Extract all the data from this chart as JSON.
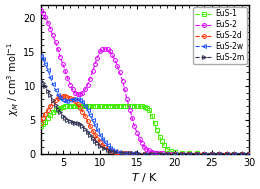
{
  "xlabel": "T / K",
  "xlim": [
    2,
    30
  ],
  "ylim": [
    0,
    22
  ],
  "series": [
    {
      "label": "EuS-1",
      "color": "#44ee00",
      "marker": "s",
      "marker_size": 2.8,
      "linestyle": "--",
      "data_x": [
        2.0,
        2.3,
        2.6,
        3.0,
        3.3,
        3.6,
        4.0,
        4.3,
        4.6,
        5.0,
        5.3,
        5.6,
        6.0,
        6.3,
        6.6,
        7.0,
        7.3,
        7.6,
        8.0,
        8.3,
        8.6,
        9.0,
        9.3,
        9.6,
        10.0,
        10.3,
        10.6,
        11.0,
        11.3,
        11.6,
        12.0,
        12.3,
        12.6,
        13.0,
        13.3,
        13.6,
        14.0,
        14.3,
        14.6,
        15.0,
        15.3,
        15.6,
        16.0,
        16.3,
        16.6,
        17.0,
        17.3,
        17.6,
        18.0,
        18.3,
        18.6,
        19.0,
        19.5,
        20.0,
        21.0,
        22.0,
        23.0,
        24.0,
        25.0,
        26.0,
        27.0,
        28.0,
        29.0,
        30.0
      ],
      "data_y": [
        4.0,
        4.3,
        4.7,
        5.3,
        5.7,
        6.1,
        6.4,
        6.6,
        6.8,
        6.9,
        7.0,
        7.0,
        7.1,
        7.1,
        7.1,
        7.1,
        7.1,
        7.1,
        7.1,
        7.1,
        7.1,
        7.1,
        7.1,
        7.1,
        7.1,
        7.1,
        7.1,
        7.1,
        7.1,
        7.1,
        7.1,
        7.1,
        7.1,
        7.1,
        7.1,
        7.1,
        7.1,
        7.1,
        7.1,
        7.0,
        7.0,
        7.0,
        6.9,
        6.8,
        6.5,
        5.5,
        4.5,
        3.5,
        2.5,
        1.8,
        1.2,
        0.7,
        0.35,
        0.15,
        0.05,
        0.02,
        0.01,
        0.0,
        0.0,
        0.0,
        0.0,
        0.0,
        0.0,
        0.0
      ]
    },
    {
      "label": "EuS-2",
      "color": "#dd00ff",
      "marker": "o",
      "marker_size": 2.8,
      "linestyle": "--",
      "data_x": [
        2.0,
        2.3,
        2.6,
        3.0,
        3.3,
        3.6,
        4.0,
        4.3,
        4.6,
        5.0,
        5.3,
        5.6,
        6.0,
        6.3,
        6.6,
        7.0,
        7.3,
        7.6,
        8.0,
        8.3,
        8.6,
        9.0,
        9.3,
        9.6,
        10.0,
        10.3,
        10.6,
        11.0,
        11.3,
        11.6,
        12.0,
        12.3,
        12.6,
        13.0,
        13.3,
        13.6,
        14.0,
        14.3,
        14.6,
        15.0,
        15.3,
        15.6,
        15.9,
        16.2,
        16.5,
        16.8,
        17.0,
        17.3,
        17.5,
        17.7,
        18.0,
        18.5,
        19.0,
        19.5,
        20.0,
        21.0,
        22.0,
        23.0,
        24.0,
        25.0,
        26.0,
        27.0,
        28.0,
        29.0,
        30.0
      ],
      "data_y": [
        21.2,
        20.8,
        20.2,
        19.3,
        18.5,
        17.5,
        16.5,
        15.5,
        14.3,
        13.2,
        12.2,
        11.2,
        10.2,
        9.5,
        9.0,
        8.8,
        8.8,
        9.0,
        9.5,
        10.2,
        11.0,
        12.2,
        13.2,
        14.2,
        15.1,
        15.4,
        15.5,
        15.4,
        15.1,
        14.6,
        13.8,
        13.0,
        12.0,
        10.8,
        9.5,
        8.0,
        6.5,
        5.2,
        4.0,
        3.0,
        2.2,
        1.5,
        1.0,
        0.7,
        0.45,
        0.28,
        0.18,
        0.1,
        0.07,
        0.04,
        0.02,
        0.01,
        0.0,
        0.0,
        0.0,
        0.0,
        0.0,
        0.0,
        0.0,
        0.0,
        0.0,
        0.0,
        0.0,
        0.0,
        0.0
      ]
    },
    {
      "label": "EuS-2d",
      "color": "#ff3300",
      "marker": "o",
      "marker_size": 2.8,
      "linestyle": "--",
      "data_x": [
        2.0,
        2.3,
        2.6,
        3.0,
        3.3,
        3.6,
        4.0,
        4.3,
        4.6,
        5.0,
        5.3,
        5.6,
        6.0,
        6.3,
        6.6,
        7.0,
        7.3,
        7.6,
        8.0,
        8.3,
        8.6,
        9.0,
        9.3,
        9.6,
        10.0,
        10.3,
        10.6,
        11.0,
        11.3,
        11.6,
        12.0,
        12.3,
        12.6,
        13.0,
        13.3,
        13.5,
        14.0,
        14.5,
        15.0,
        16.0,
        17.0,
        18.0,
        19.0,
        20.0,
        21.0,
        22.0,
        23.0,
        24.0,
        25.0,
        26.0,
        27.0,
        28.0,
        29.0,
        30.0
      ],
      "data_y": [
        4.5,
        5.2,
        5.9,
        6.5,
        7.0,
        7.5,
        7.9,
        8.2,
        8.4,
        8.5,
        8.5,
        8.4,
        8.2,
        8.0,
        7.7,
        7.3,
        6.8,
        6.2,
        5.5,
        4.8,
        4.1,
        3.4,
        2.8,
        2.2,
        1.7,
        1.3,
        1.0,
        0.75,
        0.55,
        0.38,
        0.25,
        0.17,
        0.1,
        0.06,
        0.04,
        0.02,
        0.01,
        0.0,
        0.0,
        0.0,
        0.0,
        0.0,
        0.0,
        0.0,
        0.0,
        0.0,
        0.0,
        0.0,
        0.0,
        0.0,
        0.0,
        0.0,
        0.0,
        0.0
      ]
    },
    {
      "label": "EuS-2w",
      "color": "#2255ff",
      "marker": "<",
      "marker_size": 2.8,
      "linestyle": "--",
      "data_x": [
        2.0,
        2.3,
        2.6,
        3.0,
        3.3,
        3.6,
        4.0,
        4.3,
        4.6,
        5.0,
        5.3,
        5.6,
        6.0,
        6.3,
        6.6,
        7.0,
        7.3,
        7.6,
        8.0,
        8.3,
        8.6,
        9.0,
        9.3,
        9.6,
        10.0,
        10.3,
        10.6,
        11.0,
        11.3,
        11.6,
        12.0,
        12.5,
        13.0,
        13.5,
        14.0,
        14.5,
        15.0,
        16.0,
        17.0,
        18.0,
        19.0,
        20.0,
        21.0,
        22.0,
        23.0,
        24.0,
        25.0,
        26.0,
        27.0,
        28.0,
        29.0,
        30.0
      ],
      "data_y": [
        14.5,
        14.0,
        13.3,
        12.3,
        11.3,
        10.3,
        9.4,
        8.7,
        8.2,
        7.9,
        7.8,
        7.8,
        7.9,
        8.0,
        8.1,
        8.1,
        7.9,
        7.6,
        7.0,
        6.4,
        5.7,
        4.9,
        4.2,
        3.5,
        2.8,
        2.2,
        1.7,
        1.2,
        0.85,
        0.58,
        0.38,
        0.2,
        0.1,
        0.05,
        0.02,
        0.01,
        0.0,
        0.0,
        0.0,
        0.0,
        0.0,
        0.0,
        0.0,
        0.0,
        0.0,
        0.0,
        0.0,
        0.0,
        0.0,
        0.0,
        0.0,
        0.0
      ]
    },
    {
      "label": "EuS-2m",
      "color": "#333355",
      "marker": ">",
      "marker_size": 2.8,
      "linestyle": "--",
      "data_x": [
        2.0,
        2.3,
        2.6,
        3.0,
        3.3,
        3.6,
        4.0,
        4.3,
        4.6,
        5.0,
        5.3,
        5.6,
        6.0,
        6.3,
        6.6,
        7.0,
        7.3,
        7.6,
        8.0,
        8.3,
        8.6,
        9.0,
        9.3,
        9.6,
        10.0,
        10.5,
        11.0,
        11.5,
        12.0,
        13.0,
        14.0,
        15.0,
        16.0,
        17.0,
        18.0,
        19.0,
        20.0,
        21.0,
        22.0,
        23.0,
        24.0,
        25.0,
        26.0,
        27.0,
        28.0,
        29.0,
        30.0
      ],
      "data_y": [
        10.8,
        10.5,
        10.0,
        9.3,
        8.6,
        7.9,
        7.2,
        6.6,
        6.1,
        5.6,
        5.3,
        5.0,
        4.8,
        4.6,
        4.5,
        4.5,
        4.3,
        4.0,
        3.6,
        3.2,
        2.8,
        2.3,
        1.9,
        1.5,
        1.1,
        0.75,
        0.5,
        0.3,
        0.18,
        0.07,
        0.02,
        0.01,
        0.0,
        0.0,
        0.0,
        0.0,
        0.0,
        0.0,
        0.0,
        0.0,
        0.0,
        0.0,
        0.0,
        0.0,
        0.0,
        0.0,
        0.0
      ]
    }
  ],
  "legend_loc": "upper right",
  "xticks": [
    5,
    10,
    15,
    20,
    25,
    30
  ],
  "yticks": [
    0,
    5,
    10,
    15,
    20
  ],
  "background_color": "#ffffff",
  "axes_linewidth": 1.0
}
